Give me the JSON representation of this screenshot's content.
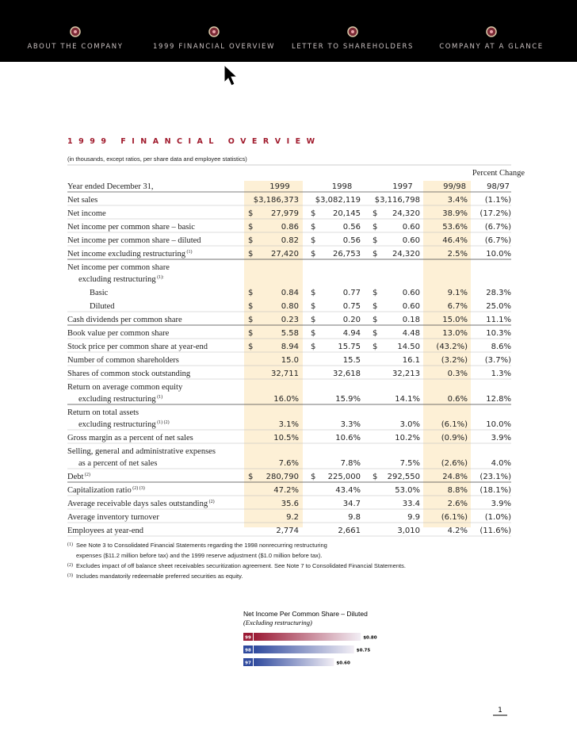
{
  "nav": {
    "items": [
      "ABOUT THE COMPANY",
      "1999 FINANCIAL OVERVIEW",
      "LETTER TO SHAREHOLDERS",
      "COMPANY AT A GLANCE"
    ]
  },
  "title": "1999 FINANCIAL OVERVIEW",
  "subtitle": "(in thousands, except ratios, per share data and employee statistics)",
  "table": {
    "group_header": "Percent Change",
    "header": [
      "Year ended December 31,",
      "1999",
      "1998",
      "1997",
      "99/98",
      "98/97"
    ],
    "rows": [
      {
        "label": [
          "Net sales"
        ],
        "values": [
          "$3,186,373",
          "$3,082,119",
          "$3,116,798",
          "3.4%",
          "(1.1%)"
        ]
      },
      {
        "label": [
          "Net income"
        ],
        "currency": "$",
        "values": [
          "27,979",
          "20,145",
          "24,320",
          "38.9%",
          "(17.2%)"
        ]
      },
      {
        "label": [
          "Net income per common share – basic"
        ],
        "currency": "$",
        "values": [
          "0.86",
          "0.56",
          "0.60",
          "53.6%",
          "(6.7%)"
        ]
      },
      {
        "label": [
          "Net income per common share – diluted"
        ],
        "currency": "$",
        "values": [
          "0.82",
          "0.56",
          "0.60",
          "46.4%",
          "(6.7%)"
        ]
      },
      {
        "label": [
          "Net income excluding restructuring"
        ],
        "note": "(1)",
        "currency": "$",
        "values": [
          "27,420",
          "26,753",
          "24,320",
          "2.5%",
          "10.0%"
        ]
      },
      {
        "label": [
          "Net income per common share",
          "excluding restructuring"
        ],
        "note": "(1):"
      },
      {
        "label": [
          "Basic"
        ],
        "level": 2,
        "currency": "$",
        "values": [
          "0.84",
          "0.77",
          "0.60",
          "9.1%",
          "28.3%"
        ]
      },
      {
        "label": [
          "Diluted"
        ],
        "level": 2,
        "currency": "$",
        "values": [
          "0.80",
          "0.75",
          "0.60",
          "6.7%",
          "25.0%"
        ]
      },
      {
        "label": [
          "Cash dividends per common share"
        ],
        "currency": "$",
        "values": [
          "0.23",
          "0.20",
          "0.18",
          "15.0%",
          "11.1%"
        ]
      },
      {
        "label": [
          "Book value per common share"
        ],
        "currency": "$",
        "values": [
          "5.58",
          "4.94",
          "4.48",
          "13.0%",
          "10.3%"
        ]
      },
      {
        "label": [
          "Stock price per common share at year-end"
        ],
        "currency": "$",
        "values": [
          "8.94",
          "15.75",
          "14.50",
          "(43.2%)",
          "8.6%"
        ]
      },
      {
        "label": [
          "Number of common shareholders"
        ],
        "values": [
          "15.0",
          "15.5",
          "16.1",
          "(3.2%)",
          "(3.7%)"
        ]
      },
      {
        "label": [
          "Shares of common stock outstanding"
        ],
        "values": [
          "32,711",
          "32,618",
          "32,213",
          "0.3%",
          "1.3%"
        ]
      },
      {
        "label": [
          "Return on average common equity",
          "excluding restructuring"
        ],
        "note": "(1)",
        "values": [
          "16.0%",
          "15.9%",
          "14.1%",
          "0.6%",
          "12.8%"
        ]
      },
      {
        "label": [
          "Return on total assets",
          "excluding restructuring"
        ],
        "note": "(1) (2)",
        "values": [
          "3.1%",
          "3.3%",
          "3.0%",
          "(6.1%)",
          "10.0%"
        ]
      },
      {
        "label": [
          "Gross margin as a percent of net sales"
        ],
        "values": [
          "10.5%",
          "10.6%",
          "10.2%",
          "(0.9%)",
          "3.9%"
        ]
      },
      {
        "label": [
          "Selling, general and administrative expenses",
          "as a percent of net sales"
        ],
        "values": [
          "7.6%",
          "7.8%",
          "7.5%",
          "(2.6%)",
          "4.0%"
        ]
      },
      {
        "label": [
          "Debt"
        ],
        "note": "(2)",
        "currency": "$",
        "values": [
          "280,790",
          "225,000",
          "292,550",
          "24.8%",
          "(23.1%)"
        ]
      },
      {
        "label": [
          "Capitalization ratio"
        ],
        "note": "(2) (3)",
        "values": [
          "47.2%",
          "43.4%",
          "53.0%",
          "8.8%",
          "(18.1%)"
        ]
      },
      {
        "label": [
          "Average receivable days sales outstanding"
        ],
        "note": "(2)",
        "values": [
          "35.6",
          "34.7",
          "33.4",
          "2.6%",
          "3.9%"
        ]
      },
      {
        "label": [
          "Average inventory turnover"
        ],
        "values": [
          "9.2",
          "9.8",
          "9.9",
          "(6.1%)",
          "(1.0%)"
        ]
      },
      {
        "label": [
          "Employees at year-end"
        ],
        "values": [
          "2,774",
          "2,661",
          "3,010",
          "4.2%",
          "(11.6%)"
        ]
      }
    ]
  },
  "footnotes": [
    {
      "marker": "(1)",
      "lines": [
        "See Note 3 to Consolidated Financial Statements regarding the 1998 nonrecurring restructuring",
        "expenses ($11.2 million before tax) and the 1999 reserve adjustment ($1.0 million before tax)."
      ]
    },
    {
      "marker": "(2)",
      "lines": [
        "Excludes impact of off balance sheet receivables securitization agreement. See Note 7 to Consolidated Financial Statements."
      ]
    },
    {
      "marker": "(3)",
      "lines": [
        "Includes mandatorily redeemable preferred securities as equity."
      ]
    }
  ],
  "chart_data": {
    "type": "bar",
    "orientation": "horizontal",
    "title": "Net Income Per Common Share – Diluted",
    "subtitle": "(Excluding restructuring)",
    "categories": [
      "99",
      "98",
      "97"
    ],
    "values": [
      0.8,
      0.75,
      0.6
    ],
    "value_labels": [
      "$0.80",
      "$0.75",
      "$0.60"
    ],
    "colors": [
      "#9b1b35",
      "#2f4a9e",
      "#2f4a9e"
    ]
  },
  "page_number": "1"
}
